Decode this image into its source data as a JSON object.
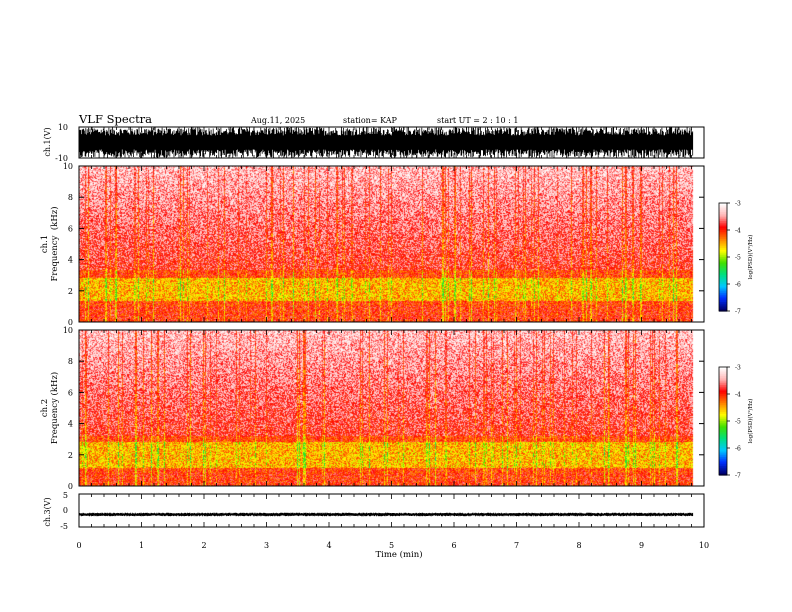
{
  "header": {
    "title": "VLF Spectra",
    "date": "Aug.11, 2025",
    "station": "station= KAP",
    "start_ut": "start  UT =   2 : 10 : 1"
  },
  "chart_data": [
    {
      "panel": "ch1-waveform",
      "type": "line",
      "ylabel": "ch.1(V)",
      "ylim": [
        -10,
        10
      ],
      "yticks": [
        "10",
        "-10"
      ],
      "xlim": [
        0,
        10
      ],
      "data_end_min": 9.82,
      "amplitude_range": [
        -10,
        10
      ],
      "trace_color": "#000000"
    },
    {
      "panel": "ch1-spectrogram",
      "type": "heatmap",
      "ylabel": "ch.1\nFrequency  (kHz)",
      "ylim": [
        0,
        10
      ],
      "yticks": [
        "0",
        "2",
        "4",
        "6",
        "8",
        "10"
      ],
      "xlim": [
        0,
        10
      ],
      "data_end_min": 9.82,
      "enhanced_band_khz": [
        1.0,
        3.3
      ],
      "strongest_band_khz": [
        1.3,
        2.8
      ],
      "colorbar": {
        "label": "log(PSD)(V²/Hz)",
        "range": [
          -7,
          -3
        ],
        "ticks": [
          "-3",
          "-4",
          "-5",
          "-6",
          "-7"
        ],
        "colors": [
          "#00006a",
          "#0030ff",
          "#00c8ff",
          "#00e080",
          "#40e000",
          "#ffff00",
          "#ff8000",
          "#ff0000",
          "#ffb4b4",
          "#ffffff"
        ]
      }
    },
    {
      "panel": "ch2-spectrogram",
      "type": "heatmap",
      "ylabel": "ch.2\nFrequency  (kHz)",
      "ylim": [
        0,
        10
      ],
      "yticks": [
        "0",
        "2",
        "4",
        "6",
        "8",
        "10"
      ],
      "xlim": [
        0,
        10
      ],
      "data_end_min": 9.82,
      "enhanced_band_khz": [
        0.8,
        3.2
      ],
      "strongest_band_khz": [
        1.1,
        2.8
      ],
      "colorbar": {
        "label": "log(PSD)(V²/Hz)",
        "range": [
          -7,
          -3
        ],
        "ticks": [
          "-3",
          "-4",
          "-5",
          "-6",
          "-7"
        ],
        "colors": [
          "#00006a",
          "#0030ff",
          "#00c8ff",
          "#00e080",
          "#40e000",
          "#ffff00",
          "#ff8000",
          "#ff0000",
          "#ffb4b4",
          "#ffffff"
        ]
      }
    },
    {
      "panel": "ch3-waveform",
      "type": "line",
      "ylabel": "ch.3(V)",
      "ylim": [
        -5,
        5
      ],
      "yticks": [
        "5",
        "0",
        "-5"
      ],
      "xlim": [
        0,
        10
      ],
      "data_end_min": 9.82,
      "level_v": -1.2,
      "amplitude_range": [
        -1.6,
        -0.8
      ],
      "trace_color": "#000000"
    }
  ],
  "x_axis": {
    "label": "Time  (min)",
    "ticks": [
      "0",
      "1",
      "2",
      "3",
      "4",
      "5",
      "6",
      "7",
      "8",
      "9",
      "10"
    ]
  }
}
